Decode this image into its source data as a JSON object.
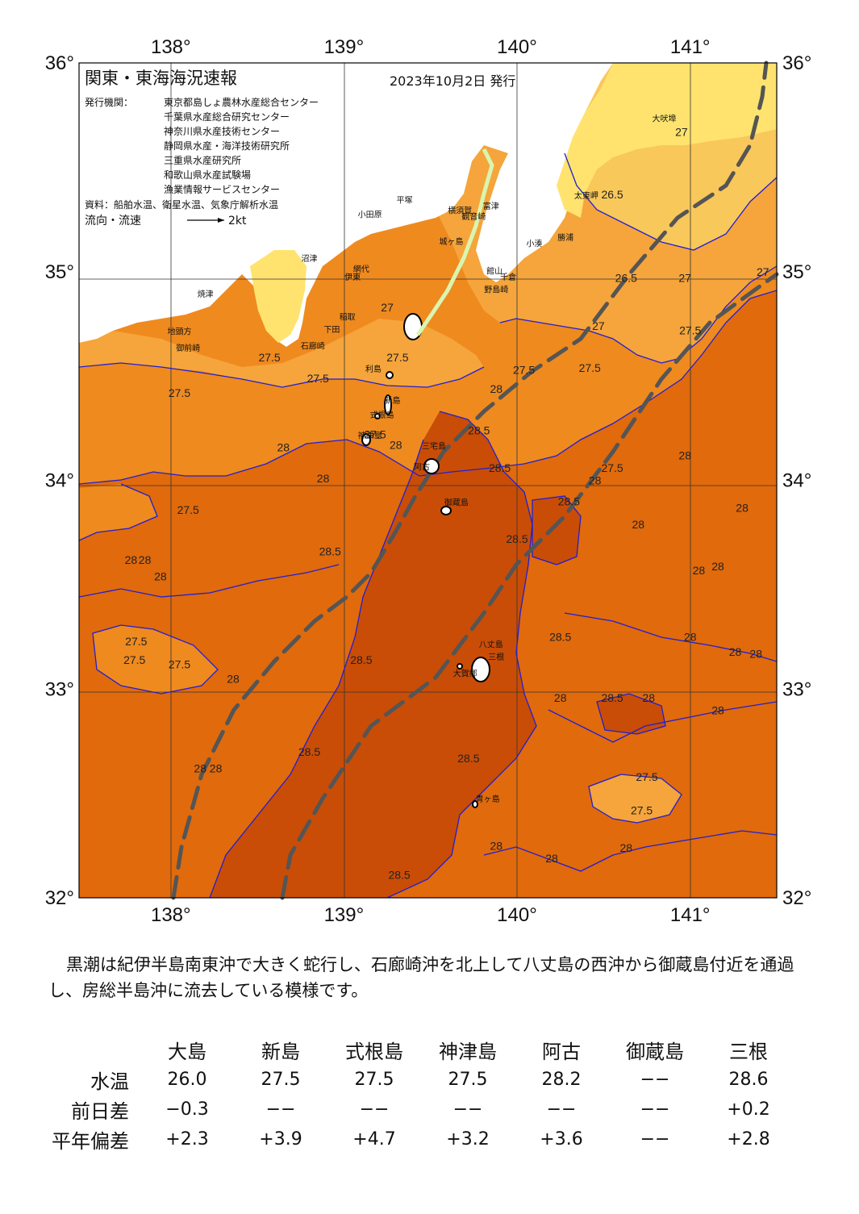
{
  "map": {
    "title": "関東・東海海況速報",
    "date": "2023年10月2日 発行",
    "issuer_label": "発行機関：",
    "issuers": [
      "東京都島しょ農林水産総合センター",
      "千葉県水産総合研究センター",
      "神奈川県水産技術センター",
      "静岡県水産・海洋技術研究所",
      "三重県水産研究所",
      "和歌山県水産試験場",
      "漁業情報サービスセンター"
    ],
    "source": "資料：船舶水温、衛星水温、気象庁解析水温",
    "flow_label": "流向・流速",
    "flow_scale": "2kt",
    "lon_labels": [
      "138°",
      "139°",
      "140°",
      "141°"
    ],
    "lat_labels": [
      "36°",
      "35°",
      "34°",
      "33°",
      "32°"
    ],
    "colors": {
      "land": "#ffffff",
      "land_yellow": "#ffe36e",
      "t26_5": "#f9c85a",
      "t27": "#f5a53b",
      "t27_5": "#ef8a1f",
      "t28": "#e06a0c",
      "t28_5": "#c94d07",
      "contour": "#1f1fd6",
      "kuroshio": "#555555"
    },
    "places": [
      {
        "name": "大吠埠",
        "lon": 140.85,
        "lat": 35.72
      },
      {
        "name": "太東岬",
        "lon": 140.4,
        "lat": 35.35
      },
      {
        "name": "勝浦",
        "lon": 140.28,
        "lat": 35.15
      },
      {
        "name": "小湊",
        "lon": 140.1,
        "lat": 35.12
      },
      {
        "name": "富津",
        "lon": 139.85,
        "lat": 35.3
      },
      {
        "name": "館山",
        "lon": 139.87,
        "lat": 34.99
      },
      {
        "name": "千倉",
        "lon": 139.95,
        "lat": 34.96
      },
      {
        "name": "野島崎",
        "lon": 139.88,
        "lat": 34.9
      },
      {
        "name": "横須賀",
        "lon": 139.67,
        "lat": 35.28
      },
      {
        "name": "観音崎",
        "lon": 139.75,
        "lat": 35.25
      },
      {
        "name": "城ヶ島",
        "lon": 139.62,
        "lat": 35.13
      },
      {
        "name": "平塚",
        "lon": 139.35,
        "lat": 35.33
      },
      {
        "name": "小田原",
        "lon": 139.15,
        "lat": 35.26
      },
      {
        "name": "網代",
        "lon": 139.1,
        "lat": 35.0
      },
      {
        "name": "伊東",
        "lon": 139.05,
        "lat": 34.96
      },
      {
        "name": "稲取",
        "lon": 139.02,
        "lat": 34.77
      },
      {
        "name": "下田",
        "lon": 138.93,
        "lat": 34.71
      },
      {
        "name": "石廊崎",
        "lon": 138.82,
        "lat": 34.63
      },
      {
        "name": "沼津",
        "lon": 138.8,
        "lat": 35.05
      },
      {
        "name": "焼津",
        "lon": 138.2,
        "lat": 34.88
      },
      {
        "name": "御前崎",
        "lon": 138.1,
        "lat": 34.62
      },
      {
        "name": "地頭方",
        "lon": 138.05,
        "lat": 34.7
      },
      {
        "name": "利島",
        "lon": 139.17,
        "lat": 34.52
      },
      {
        "name": "新島",
        "lon": 139.28,
        "lat": 34.37
      },
      {
        "name": "式根島",
        "lon": 139.22,
        "lat": 34.3
      },
      {
        "name": "神津島",
        "lon": 139.15,
        "lat": 34.2
      },
      {
        "name": "三宅島",
        "lon": 139.52,
        "lat": 34.15
      },
      {
        "name": "阿古",
        "lon": 139.45,
        "lat": 34.05
      },
      {
        "name": "御蔵島",
        "lon": 139.65,
        "lat": 33.88
      },
      {
        "name": "八丈島",
        "lon": 139.85,
        "lat": 33.2
      },
      {
        "name": "三根",
        "lon": 139.88,
        "lat": 33.14
      },
      {
        "name": "大賀郷",
        "lon": 139.7,
        "lat": 33.06
      },
      {
        "name": "青ヶ島",
        "lon": 139.83,
        "lat": 32.46
      }
    ],
    "isotherm_labels": [
      {
        "t": "27",
        "lon": 140.95,
        "lat": 35.65
      },
      {
        "t": "26.5",
        "lon": 140.55,
        "lat": 35.35
      },
      {
        "t": "27",
        "lon": 140.97,
        "lat": 34.95
      },
      {
        "t": "27",
        "lon": 141.42,
        "lat": 34.98
      },
      {
        "t": "26.5",
        "lon": 140.63,
        "lat": 34.95
      },
      {
        "t": "27",
        "lon": 140.47,
        "lat": 34.72
      },
      {
        "t": "27.5",
        "lon": 141.0,
        "lat": 34.7
      },
      {
        "t": "27.5",
        "lon": 140.42,
        "lat": 34.52
      },
      {
        "t": "27.5",
        "lon": 140.04,
        "lat": 34.51
      },
      {
        "t": "28",
        "lon": 139.88,
        "lat": 34.42
      },
      {
        "t": "27",
        "lon": 139.25,
        "lat": 34.81
      },
      {
        "t": "27.5",
        "lon": 139.31,
        "lat": 34.57
      },
      {
        "t": "27.5",
        "lon": 138.57,
        "lat": 34.57
      },
      {
        "t": "27.5",
        "lon": 138.85,
        "lat": 34.47
      },
      {
        "t": "27.5",
        "lon": 138.05,
        "lat": 34.4
      },
      {
        "t": "27.5",
        "lon": 139.18,
        "lat": 34.2
      },
      {
        "t": "28",
        "lon": 139.3,
        "lat": 34.15
      },
      {
        "t": "28.5",
        "lon": 139.78,
        "lat": 34.22
      },
      {
        "t": "28.5",
        "lon": 139.9,
        "lat": 34.04
      },
      {
        "t": "28",
        "lon": 138.65,
        "lat": 34.14
      },
      {
        "t": "28",
        "lon": 138.88,
        "lat": 33.99
      },
      {
        "t": "27.5",
        "lon": 140.55,
        "lat": 34.04
      },
      {
        "t": "28",
        "lon": 140.45,
        "lat": 33.98
      },
      {
        "t": "28.5",
        "lon": 140.3,
        "lat": 33.88
      },
      {
        "t": "28",
        "lon": 140.97,
        "lat": 34.1
      },
      {
        "t": "28",
        "lon": 141.3,
        "lat": 33.85
      },
      {
        "t": "28",
        "lon": 140.7,
        "lat": 33.77
      },
      {
        "t": "27.5",
        "lon": 138.1,
        "lat": 33.84
      },
      {
        "t": "28.5",
        "lon": 138.92,
        "lat": 33.64
      },
      {
        "t": "28.5",
        "lon": 140.0,
        "lat": 33.7
      },
      {
        "t": "28",
        "lon": 137.77,
        "lat": 33.6
      },
      {
        "t": "28",
        "lon": 137.85,
        "lat": 33.6
      },
      {
        "t": "28",
        "lon": 137.94,
        "lat": 33.52
      },
      {
        "t": "28",
        "lon": 141.05,
        "lat": 33.55
      },
      {
        "t": "28",
        "lon": 141.16,
        "lat": 33.57
      },
      {
        "t": "27.5",
        "lon": 137.8,
        "lat": 33.21
      },
      {
        "t": "27.5",
        "lon": 137.79,
        "lat": 33.12
      },
      {
        "t": "27.5",
        "lon": 138.05,
        "lat": 33.1
      },
      {
        "t": "28.5",
        "lon": 139.1,
        "lat": 33.12
      },
      {
        "t": "28.5",
        "lon": 140.25,
        "lat": 33.23
      },
      {
        "t": "28",
        "lon": 141.0,
        "lat": 33.23
      },
      {
        "t": "28",
        "lon": 141.26,
        "lat": 33.16
      },
      {
        "t": "28",
        "lon": 141.38,
        "lat": 33.15
      },
      {
        "t": "28",
        "lon": 138.36,
        "lat": 33.03
      },
      {
        "t": "28",
        "lon": 140.25,
        "lat": 32.94
      },
      {
        "t": "28.5",
        "lon": 140.55,
        "lat": 32.94
      },
      {
        "t": "28",
        "lon": 140.76,
        "lat": 32.94
      },
      {
        "t": "28",
        "lon": 141.16,
        "lat": 32.88
      },
      {
        "t": "28",
        "lon": 138.17,
        "lat": 32.6
      },
      {
        "t": "28",
        "lon": 138.26,
        "lat": 32.6
      },
      {
        "t": "28.5",
        "lon": 138.8,
        "lat": 32.68
      },
      {
        "t": "28.5",
        "lon": 139.72,
        "lat": 32.65
      },
      {
        "t": "27.5",
        "lon": 140.75,
        "lat": 32.56
      },
      {
        "t": "27.5",
        "lon": 140.72,
        "lat": 32.4
      },
      {
        "t": "28",
        "lon": 139.88,
        "lat": 32.23
      },
      {
        "t": "28",
        "lon": 140.2,
        "lat": 32.17
      },
      {
        "t": "28",
        "lon": 140.63,
        "lat": 32.22
      },
      {
        "t": "28.5",
        "lon": 139.32,
        "lat": 32.09
      }
    ]
  },
  "summary": "黒潮は紀伊半島南東沖で大きく蛇行し、石廊崎沖を北上して八丈島の西沖から御蔵島付近を通過し、房総半島沖に流去している模様です。",
  "table": {
    "columns": [
      "大島",
      "新島",
      "式根島",
      "神津島",
      "阿古",
      "御蔵島",
      "三根"
    ],
    "rows": [
      {
        "label": "水温",
        "values": [
          "26.0",
          "27.5",
          "27.5",
          "27.5",
          "28.2",
          "−−",
          "28.6"
        ]
      },
      {
        "label": "前日差",
        "values": [
          "−0.3",
          "−−",
          "−−",
          "−−",
          "−−",
          "−−",
          "+0.2"
        ]
      },
      {
        "label": "平年偏差",
        "values": [
          "+2.3",
          "+3.9",
          "+4.7",
          "+3.2",
          "+3.6",
          "−−",
          "+2.8"
        ]
      }
    ]
  }
}
